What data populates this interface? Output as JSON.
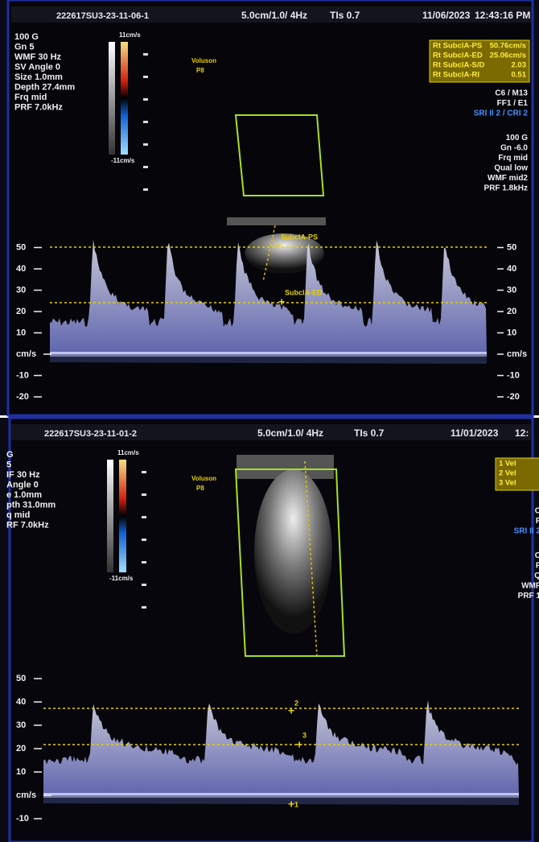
{
  "panels": [
    {
      "header": {
        "id": "222617SU3-23-11-06-1",
        "scale": "5.0cm/1.0/ 4Hz",
        "tis": "TIs 0.7",
        "date": "11/06/2023",
        "time": "12:43:16 PM"
      },
      "left_params": [
        "100 G",
        "Gn 5",
        "WMF 30 Hz",
        "SV Angle 0",
        "Size 1.0mm",
        "Depth 27.4mm",
        "Frq mid",
        "PRF 7.0kHz"
      ],
      "color_bar": {
        "top": "11cm/s",
        "bottom": "-11cm/s"
      },
      "probe": {
        "brand": "Voluson",
        "name": "P8"
      },
      "measurements": [
        {
          "label": "Rt SubclA-PS",
          "value": "50.76cm/s"
        },
        {
          "label": "Rt SubclA-ED",
          "value": "25.06cm/s"
        },
        {
          "label": "Rt SubclA-S/D",
          "value": "2.03"
        },
        {
          "label": "Rt SubclA-RI",
          "value": "0.51"
        }
      ],
      "right_params": [
        "C6 / M13",
        "FF1 / E1",
        "SRI II 2 / CRI 2",
        "100 G",
        "Gn -6.0",
        "Frq mid",
        "Qual low",
        "WMF mid2",
        "PRF 1.8kHz"
      ],
      "markers": [
        "SubclA-PS",
        "SubclA-ED"
      ],
      "axis_labels": [
        "50",
        "40",
        "30",
        "20",
        "10",
        "cm/s",
        "-10",
        "-20"
      ]
    },
    {
      "header": {
        "id": "222617SU3-23-11-01-2",
        "scale": "5.0cm/1.0/ 4Hz",
        "tis": "TIs 0.7",
        "date": "11/01/2023",
        "time": "12:"
      },
      "left_params": [
        "G",
        "5",
        "IF 30 Hz",
        "Angle 0",
        "e 1.0mm",
        "pth 31.0mm",
        "q mid",
        "RF 7.0kHz"
      ],
      "color_bar": {
        "top": "11cm/s",
        "bottom": "-11cm/s"
      },
      "probe": {
        "brand": "Voluson",
        "name": "P8"
      },
      "measurements": [
        {
          "label": "1 Vel"
        },
        {
          "label": "2 Vel"
        },
        {
          "label": "3 Vel"
        }
      ],
      "right_params": [
        "C",
        "F",
        "SRI II 2",
        "C",
        "F",
        "Q",
        "WMF",
        "PRF 1"
      ],
      "markers": [
        "2",
        "3",
        "1"
      ],
      "axis_labels": [
        "50",
        "40",
        "30",
        "20",
        "10",
        "cm/s",
        "-10"
      ]
    }
  ]
}
